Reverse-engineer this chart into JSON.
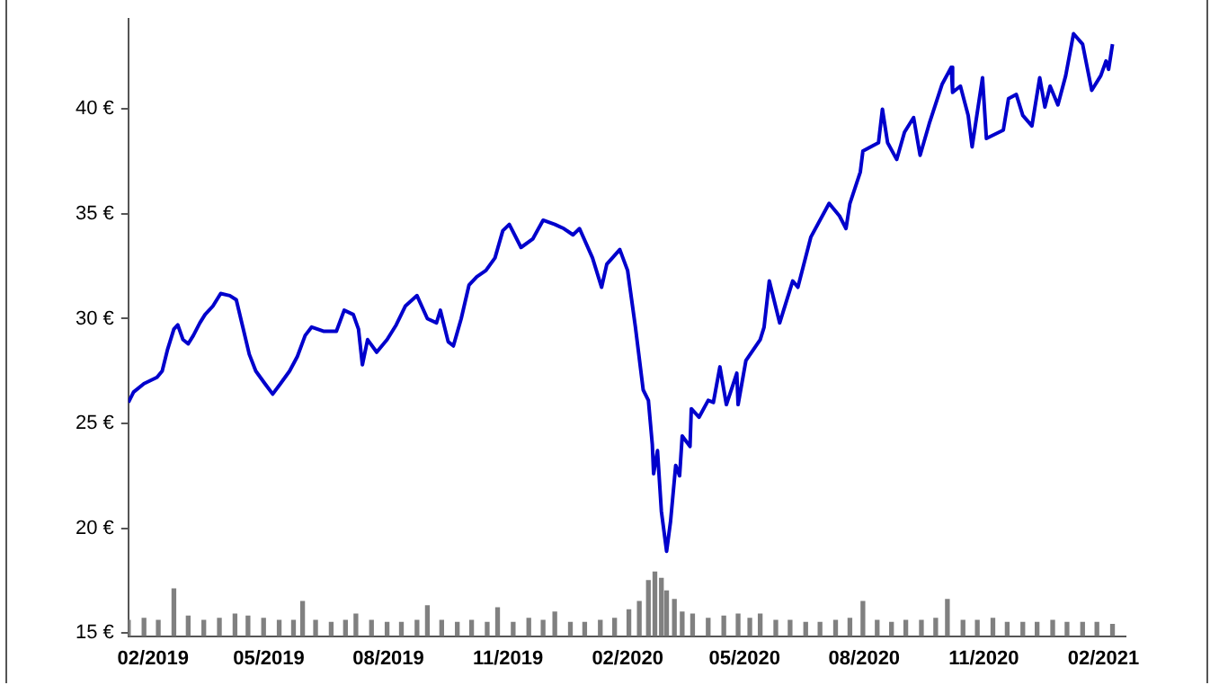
{
  "chart_data": {
    "type": "line",
    "xlim": [
      "2019-01-13",
      "2021-02-18"
    ],
    "xticks": [
      {
        "value": "2019-02-01",
        "label": "02/2019"
      },
      {
        "value": "2019-05-01",
        "label": "05/2019"
      },
      {
        "value": "2019-08-01",
        "label": "08/2019"
      },
      {
        "value": "2019-11-01",
        "label": "11/2019"
      },
      {
        "value": "2020-02-01",
        "label": "02/2020"
      },
      {
        "value": "2020-05-01",
        "label": "05/2020"
      },
      {
        "value": "2020-08-01",
        "label": "08/2020"
      },
      {
        "value": "2020-11-01",
        "label": "11/2020"
      },
      {
        "value": "2021-02-01",
        "label": "02/2021"
      }
    ],
    "ylim": [
      14.85,
      44.3
    ],
    "yticks": [
      {
        "value": 15,
        "label": "15 €"
      },
      {
        "value": 20,
        "label": "20 €"
      },
      {
        "value": 25,
        "label": "25 €"
      },
      {
        "value": 30,
        "label": "30 €"
      },
      {
        "value": 35,
        "label": "35 €"
      },
      {
        "value": 40,
        "label": "40 €"
      }
    ],
    "grid": false,
    "legend": false,
    "marker": "none",
    "line_style": "solid",
    "series": [
      {
        "type": "bar",
        "color": "#808080",
        "x": [
          "2019-01-13",
          "2019-01-25",
          "2019-02-05",
          "2019-02-17",
          "2019-02-28",
          "2019-03-12",
          "2019-03-24",
          "2019-04-05",
          "2019-04-15",
          "2019-04-27",
          "2019-05-09",
          "2019-05-20",
          "2019-05-27",
          "2019-06-06",
          "2019-06-18",
          "2019-06-29",
          "2019-07-07",
          "2019-07-19",
          "2019-07-31",
          "2019-08-11",
          "2019-08-23",
          "2019-08-31",
          "2019-09-11",
          "2019-09-23",
          "2019-10-04",
          "2019-10-16",
          "2019-10-24",
          "2019-11-05",
          "2019-11-17",
          "2019-11-28",
          "2019-12-07",
          "2019-12-19",
          "2019-12-30",
          "2020-01-11",
          "2020-01-22",
          "2020-02-02",
          "2020-02-10",
          "2020-02-17",
          "2020-02-22",
          "2020-02-27",
          "2020-03-02",
          "2020-03-08",
          "2020-03-14",
          "2020-03-22",
          "2020-04-03",
          "2020-04-15",
          "2020-04-26",
          "2020-05-05",
          "2020-05-13",
          "2020-05-25",
          "2020-06-05",
          "2020-06-17",
          "2020-06-28",
          "2020-07-10",
          "2020-07-21",
          "2020-07-31",
          "2020-08-11",
          "2020-08-22",
          "2020-09-02",
          "2020-09-14",
          "2020-09-25",
          "2020-10-04",
          "2020-10-16",
          "2020-10-27",
          "2020-11-08",
          "2020-11-19",
          "2020-12-01",
          "2020-12-12",
          "2020-12-24",
          "2021-01-04",
          "2021-01-16",
          "2021-01-27",
          "2021-02-08"
        ],
        "values": [
          15.6,
          15.7,
          15.6,
          17.1,
          15.8,
          15.6,
          15.7,
          15.9,
          15.8,
          15.7,
          15.6,
          15.6,
          16.5,
          15.6,
          15.5,
          15.6,
          15.9,
          15.6,
          15.5,
          15.5,
          15.6,
          16.3,
          15.6,
          15.5,
          15.6,
          15.5,
          16.2,
          15.5,
          15.7,
          15.6,
          16.0,
          15.5,
          15.5,
          15.6,
          15.7,
          16.1,
          16.5,
          17.5,
          17.9,
          17.6,
          17.0,
          16.6,
          16.0,
          15.9,
          15.7,
          15.8,
          15.9,
          15.7,
          15.9,
          15.6,
          15.6,
          15.5,
          15.5,
          15.6,
          15.7,
          16.5,
          15.6,
          15.5,
          15.6,
          15.6,
          15.7,
          16.6,
          15.6,
          15.6,
          15.7,
          15.5,
          15.5,
          15.5,
          15.6,
          15.5,
          15.5,
          15.5,
          15.4
        ]
      },
      {
        "color": "#0000cc",
        "x": [
          "2019-01-13",
          "2019-01-17",
          "2019-01-25",
          "2019-02-04",
          "2019-02-08",
          "2019-02-12",
          "2019-02-17",
          "2019-02-20",
          "2019-02-24",
          "2019-02-28",
          "2019-03-04",
          "2019-03-09",
          "2019-03-13",
          "2019-03-19",
          "2019-03-25",
          "2019-04-01",
          "2019-04-06",
          "2019-04-11",
          "2019-04-16",
          "2019-04-21",
          "2019-04-28",
          "2019-05-04",
          "2019-05-10",
          "2019-05-17",
          "2019-05-23",
          "2019-05-29",
          "2019-06-03",
          "2019-06-12",
          "2019-06-22",
          "2019-06-28",
          "2019-07-05",
          "2019-07-09",
          "2019-07-12",
          "2019-07-16",
          "2019-07-23",
          "2019-07-31",
          "2019-08-07",
          "2019-08-14",
          "2019-08-23",
          "2019-08-31",
          "2019-09-07",
          "2019-09-10",
          "2019-09-16",
          "2019-09-20",
          "2019-09-26",
          "2019-10-02",
          "2019-10-08",
          "2019-10-15",
          "2019-10-22",
          "2019-10-28",
          "2019-11-02",
          "2019-11-11",
          "2019-11-20",
          "2019-11-28",
          "2019-12-07",
          "2019-12-14",
          "2019-12-21",
          "2019-12-26",
          "2020-01-05",
          "2020-01-12",
          "2020-01-16",
          "2020-01-26",
          "2020-02-01",
          "2020-02-07",
          "2020-02-13",
          "2020-02-17",
          "2020-02-20",
          "2020-02-21",
          "2020-02-24",
          "2020-02-27",
          "2020-03-02",
          "2020-03-05",
          "2020-03-09",
          "2020-03-12",
          "2020-03-14",
          "2020-03-20",
          "2020-03-21",
          "2020-03-27",
          "2020-04-03",
          "2020-04-07",
          "2020-04-12",
          "2020-04-17",
          "2020-04-25",
          "2020-04-26",
          "2020-05-02",
          "2020-05-13",
          "2020-05-16",
          "2020-05-20",
          "2020-05-28",
          "2020-06-07",
          "2020-06-11",
          "2020-06-21",
          "2020-07-05",
          "2020-07-13",
          "2020-07-18",
          "2020-07-21",
          "2020-07-29",
          "2020-07-31",
          "2020-08-12",
          "2020-08-15",
          "2020-08-19",
          "2020-08-26",
          "2020-09-01",
          "2020-09-08",
          "2020-09-13",
          "2020-09-20",
          "2020-09-30",
          "2020-10-07",
          "2020-10-08",
          "2020-10-14",
          "2020-10-20",
          "2020-10-23",
          "2020-10-31",
          "2020-11-03",
          "2020-11-16",
          "2020-11-20",
          "2020-11-26",
          "2020-12-01",
          "2020-12-08",
          "2020-12-14",
          "2020-12-18",
          "2020-12-22",
          "2020-12-28",
          "2021-01-03",
          "2021-01-09",
          "2021-01-16",
          "2021-01-23",
          "2021-01-30",
          "2021-02-03",
          "2021-02-05",
          "2021-02-08"
        ],
        "values": [
          26.0,
          26.5,
          26.9,
          27.2,
          27.5,
          28.5,
          29.5,
          29.7,
          29.0,
          28.8,
          29.2,
          29.8,
          30.2,
          30.6,
          31.2,
          31.1,
          30.9,
          29.6,
          28.3,
          27.5,
          26.9,
          26.4,
          26.9,
          27.5,
          28.2,
          29.2,
          29.6,
          29.4,
          29.4,
          30.4,
          30.2,
          29.5,
          27.8,
          29.0,
          28.4,
          29.0,
          29.7,
          30.6,
          31.1,
          30.0,
          29.8,
          30.4,
          28.9,
          28.7,
          30.0,
          31.6,
          32.0,
          32.3,
          32.9,
          34.2,
          34.5,
          33.4,
          33.8,
          34.7,
          34.5,
          34.3,
          34.0,
          34.3,
          32.9,
          31.5,
          32.6,
          33.3,
          32.3,
          29.6,
          26.6,
          26.1,
          24.0,
          22.6,
          23.7,
          20.8,
          18.9,
          20.3,
          23.0,
          22.5,
          24.4,
          23.9,
          25.7,
          25.3,
          26.1,
          26.0,
          27.7,
          25.9,
          27.4,
          25.9,
          28.0,
          29.0,
          29.6,
          31.8,
          29.8,
          31.8,
          31.5,
          33.9,
          35.5,
          34.9,
          34.3,
          35.5,
          37.0,
          38.0,
          38.4,
          40.0,
          38.4,
          37.6,
          38.9,
          39.6,
          37.8,
          39.3,
          41.2,
          42.0,
          40.8,
          41.1,
          39.7,
          38.2,
          41.5,
          38.6,
          39.0,
          40.5,
          40.7,
          39.7,
          39.2,
          41.5,
          40.1,
          41.1,
          40.2,
          41.6,
          43.6,
          43.1,
          40.9,
          41.6,
          42.3,
          41.9,
          43.1
        ]
      }
    ]
  }
}
